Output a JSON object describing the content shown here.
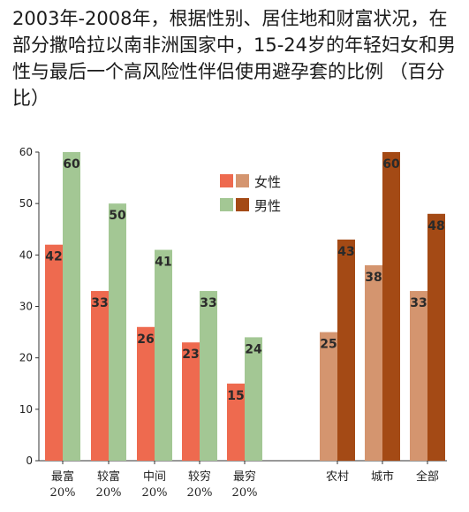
{
  "title": "2003年-2008年，根据性别、居住地和财富状况，在部分撒哈拉以南非洲国家中，15-24岁的年轻妇女和男性与最后一个高风险性伴侣使用避孕套的比例 （百分比）",
  "legend": {
    "female": "女性",
    "male": "男性"
  },
  "colors": {
    "wealth_female": "#ee6a4f",
    "wealth_male": "#a3c794",
    "residence_female": "#d4956f",
    "residence_male": "#a44a15"
  },
  "chart_data": {
    "type": "bar",
    "title": "2003年-2008年，根据性别、居住地和财富状况，在部分撒哈拉以南非洲国家中，15-24岁的年轻妇女和男性与最后一个高风险性伴侣使用避孕套的比例 （百分比）",
    "xlabel": "",
    "ylabel": "",
    "ylim": [
      0,
      60
    ],
    "yticks": [
      0,
      10,
      20,
      30,
      40,
      50,
      60
    ],
    "groups": [
      {
        "name": "wealth",
        "categories": [
          [
            "最富",
            "20%"
          ],
          [
            "较富",
            "20%"
          ],
          [
            "中间",
            "20%"
          ],
          [
            "较穷",
            "20%"
          ],
          [
            "最穷",
            "20%"
          ]
        ],
        "series": [
          {
            "name": "女性",
            "values": [
              42,
              33,
              26,
              23,
              15
            ]
          },
          {
            "name": "男性",
            "values": [
              60,
              50,
              41,
              33,
              24
            ]
          }
        ]
      },
      {
        "name": "residence",
        "categories": [
          [
            "农村"
          ],
          [
            "城市"
          ],
          [
            "全部"
          ]
        ],
        "series": [
          {
            "name": "女性",
            "values": [
              25,
              38,
              33
            ]
          },
          {
            "name": "男性",
            "values": [
              43,
              60,
              48
            ]
          }
        ]
      }
    ],
    "grid": false,
    "legend_position": "top-center"
  }
}
